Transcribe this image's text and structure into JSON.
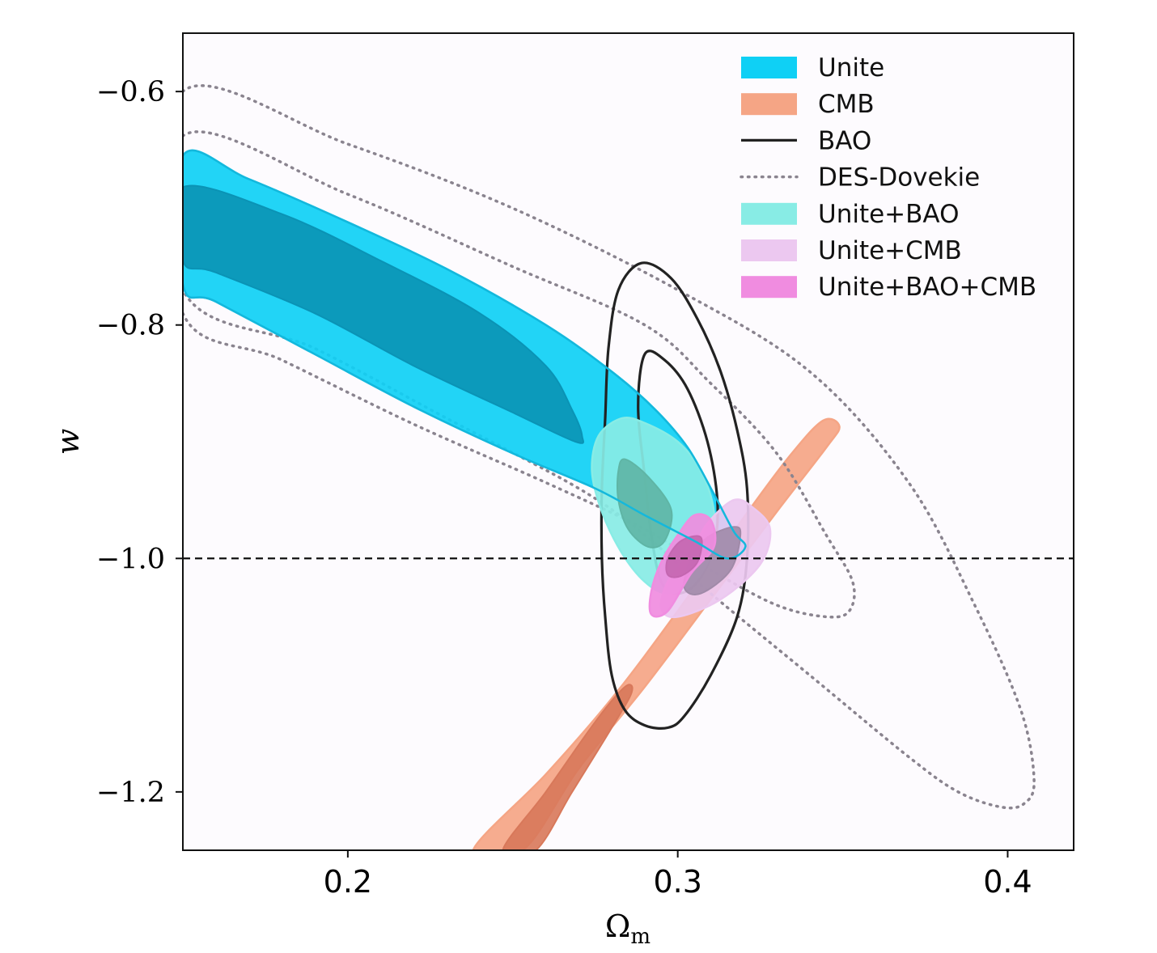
{
  "chart_data": {
    "type": "contour",
    "title": "",
    "xlabel": "Ω",
    "xlabel_sub": "m",
    "ylabel": "w",
    "xlim": [
      0.15,
      0.42
    ],
    "ylim": [
      -1.25,
      -0.55
    ],
    "x_ticks": [
      {
        "value": 0.2,
        "label": "0.2"
      },
      {
        "value": 0.3,
        "label": "0.3"
      },
      {
        "value": 0.4,
        "label": "0.4"
      }
    ],
    "y_ticks": [
      {
        "value": -0.6,
        "label": "−0.6"
      },
      {
        "value": -0.8,
        "label": "−0.8"
      },
      {
        "value": -1.0,
        "label": "−1.0"
      },
      {
        "value": -1.2,
        "label": "−1.2"
      }
    ],
    "reference_line": {
      "y": -1.0,
      "style": "dashed",
      "color": "#111111"
    },
    "grid": false,
    "legend_position": "top-right",
    "series": [
      {
        "name": "Unite",
        "style": "filled",
        "color": "#0fd0f5",
        "inner_color": "#0a93b5",
        "outer": [
          [
            0.15,
            -0.655
          ],
          [
            0.17,
            -0.675
          ],
          [
            0.2,
            -0.712
          ],
          [
            0.23,
            -0.752
          ],
          [
            0.26,
            -0.8
          ],
          [
            0.28,
            -0.84
          ],
          [
            0.293,
            -0.872
          ],
          [
            0.303,
            -0.905
          ],
          [
            0.311,
            -0.945
          ],
          [
            0.317,
            -0.977
          ],
          [
            0.3205,
            -0.99
          ],
          [
            0.315,
            -1.0
          ],
          [
            0.305,
            -0.985
          ],
          [
            0.29,
            -0.963
          ],
          [
            0.275,
            -0.94
          ],
          [
            0.25,
            -0.91
          ],
          [
            0.22,
            -0.87
          ],
          [
            0.19,
            -0.825
          ],
          [
            0.16,
            -0.78
          ],
          [
            0.15,
            -0.765
          ]
        ],
        "inner": [
          [
            0.15,
            -0.682
          ],
          [
            0.18,
            -0.705
          ],
          [
            0.21,
            -0.745
          ],
          [
            0.24,
            -0.79
          ],
          [
            0.26,
            -0.835
          ],
          [
            0.268,
            -0.873
          ],
          [
            0.271,
            -0.895
          ],
          [
            0.269,
            -0.9
          ],
          [
            0.25,
            -0.875
          ],
          [
            0.22,
            -0.835
          ],
          [
            0.19,
            -0.79
          ],
          [
            0.16,
            -0.755
          ],
          [
            0.15,
            -0.745
          ]
        ]
      },
      {
        "name": "CMB",
        "style": "filled",
        "color": "#f5a585",
        "inner_color": "#d8785a",
        "outer": [
          [
            0.238,
            -1.25
          ],
          [
            0.26,
            -1.185
          ],
          [
            0.28,
            -1.12
          ],
          [
            0.3,
            -1.045
          ],
          [
            0.32,
            -0.965
          ],
          [
            0.334,
            -0.912
          ],
          [
            0.344,
            -0.882
          ],
          [
            0.349,
            -0.887
          ],
          [
            0.345,
            -0.905
          ],
          [
            0.33,
            -0.96
          ],
          [
            0.31,
            -1.035
          ],
          [
            0.29,
            -1.11
          ],
          [
            0.27,
            -1.18
          ],
          [
            0.253,
            -1.25
          ]
        ],
        "inner": [
          [
            0.247,
            -1.25
          ],
          [
            0.26,
            -1.2
          ],
          [
            0.275,
            -1.14
          ],
          [
            0.284,
            -1.11
          ],
          [
            0.286,
            -1.115
          ],
          [
            0.28,
            -1.145
          ],
          [
            0.268,
            -1.2
          ],
          [
            0.257,
            -1.25
          ]
        ]
      },
      {
        "name": "BAO",
        "style": "line",
        "color": "#222222",
        "outer": [
          [
            0.289,
            -0.747
          ],
          [
            0.298,
            -0.76
          ],
          [
            0.306,
            -0.795
          ],
          [
            0.313,
            -0.84
          ],
          [
            0.318,
            -0.89
          ],
          [
            0.321,
            -0.94
          ],
          [
            0.321,
            -1.0
          ],
          [
            0.318,
            -1.05
          ],
          [
            0.31,
            -1.1
          ],
          [
            0.302,
            -1.135
          ],
          [
            0.297,
            -1.145
          ],
          [
            0.29,
            -1.143
          ],
          [
            0.284,
            -1.13
          ],
          [
            0.28,
            -1.1
          ],
          [
            0.278,
            -1.05
          ],
          [
            0.277,
            -1.0
          ],
          [
            0.277,
            -0.94
          ],
          [
            0.278,
            -0.88
          ],
          [
            0.279,
            -0.82
          ],
          [
            0.282,
            -0.77
          ]
        ],
        "inner": [
          [
            0.29,
            -0.825
          ],
          [
            0.296,
            -0.83
          ],
          [
            0.303,
            -0.855
          ],
          [
            0.309,
            -0.9
          ],
          [
            0.312,
            -0.95
          ],
          [
            0.311,
            -0.99
          ],
          [
            0.306,
            -1.02
          ],
          [
            0.3,
            -1.03
          ],
          [
            0.295,
            -1.02
          ],
          [
            0.292,
            -0.98
          ],
          [
            0.29,
            -0.93
          ],
          [
            0.288,
            -0.87
          ]
        ]
      },
      {
        "name": "DES-Dovekie",
        "style": "dotted",
        "color": "#8a848f",
        "outer": [
          [
            0.15,
            -0.6
          ],
          [
            0.2,
            -0.645
          ],
          [
            0.25,
            -0.7
          ],
          [
            0.3,
            -0.77
          ],
          [
            0.34,
            -0.84
          ],
          [
            0.37,
            -0.935
          ],
          [
            0.39,
            -1.04
          ],
          [
            0.404,
            -1.13
          ],
          [
            0.408,
            -1.19
          ],
          [
            0.405,
            -1.21
          ],
          [
            0.398,
            -1.213
          ],
          [
            0.385,
            -1.2
          ],
          [
            0.37,
            -1.17
          ],
          [
            0.34,
            -1.1
          ],
          [
            0.31,
            -1.03
          ],
          [
            0.29,
            -0.98
          ],
          [
            0.27,
            -0.94
          ],
          [
            0.23,
            -0.88
          ],
          [
            0.19,
            -0.82
          ],
          [
            0.15,
            -0.77
          ]
        ],
        "inner": [
          [
            0.15,
            -0.638
          ],
          [
            0.2,
            -0.688
          ],
          [
            0.25,
            -0.75
          ],
          [
            0.29,
            -0.8
          ],
          [
            0.31,
            -0.85
          ],
          [
            0.33,
            -0.91
          ],
          [
            0.345,
            -0.98
          ],
          [
            0.353,
            -1.02
          ],
          [
            0.352,
            -1.045
          ],
          [
            0.345,
            -1.05
          ],
          [
            0.33,
            -1.04
          ],
          [
            0.31,
            -1.01
          ],
          [
            0.29,
            -0.975
          ],
          [
            0.26,
            -0.935
          ],
          [
            0.22,
            -0.885
          ],
          [
            0.18,
            -0.83
          ],
          [
            0.15,
            -0.79
          ]
        ]
      },
      {
        "name": "Unite+BAO",
        "style": "filled",
        "color": "#88ece5",
        "inner_color": "#5fb5a5",
        "outer": [
          [
            0.283,
            -0.88
          ],
          [
            0.29,
            -0.884
          ],
          [
            0.3,
            -0.9
          ],
          [
            0.307,
            -0.925
          ],
          [
            0.311,
            -0.96
          ],
          [
            0.31,
            -0.995
          ],
          [
            0.305,
            -1.02
          ],
          [
            0.297,
            -1.03
          ],
          [
            0.29,
            -1.02
          ],
          [
            0.283,
            -0.995
          ],
          [
            0.277,
            -0.96
          ],
          [
            0.274,
            -0.925
          ],
          [
            0.276,
            -0.895
          ]
        ],
        "inner": [
          [
            0.284,
            -0.915
          ],
          [
            0.291,
            -0.93
          ],
          [
            0.298,
            -0.958
          ],
          [
            0.296,
            -0.985
          ],
          [
            0.291,
            -0.99
          ],
          [
            0.285,
            -0.975
          ],
          [
            0.282,
            -0.95
          ],
          [
            0.282,
            -0.925
          ]
        ]
      },
      {
        "name": "Unite+CMB",
        "style": "filled",
        "color": "#ecc8f0",
        "inner_color": "#a08aa8",
        "outer": [
          [
            0.317,
            -0.95
          ],
          [
            0.323,
            -0.957
          ],
          [
            0.328,
            -0.975
          ],
          [
            0.325,
            -1.005
          ],
          [
            0.313,
            -1.035
          ],
          [
            0.3,
            -1.05
          ],
          [
            0.295,
            -1.043
          ],
          [
            0.297,
            -1.02
          ],
          [
            0.304,
            -0.995
          ],
          [
            0.309,
            -0.97
          ]
        ],
        "inner": [
          [
            0.317,
            -0.973
          ],
          [
            0.319,
            -0.98
          ],
          [
            0.316,
            -1.01
          ],
          [
            0.307,
            -1.03
          ],
          [
            0.302,
            -1.025
          ],
          [
            0.304,
            -1.0
          ],
          [
            0.309,
            -0.982
          ]
        ]
      },
      {
        "name": "Unite+BAO+CMB",
        "style": "filled",
        "color": "#f08ce0",
        "inner_color": "#c466b0",
        "outer": [
          [
            0.305,
            -0.963
          ],
          [
            0.31,
            -0.967
          ],
          [
            0.311,
            -0.99
          ],
          [
            0.304,
            -1.013
          ],
          [
            0.297,
            -1.045
          ],
          [
            0.292,
            -1.048
          ],
          [
            0.292,
            -1.028
          ],
          [
            0.295,
            -1.003
          ],
          [
            0.3,
            -0.98
          ]
        ],
        "inner": [
          [
            0.307,
            -0.982
          ],
          [
            0.306,
            -1.003
          ],
          [
            0.301,
            -1.015
          ],
          [
            0.297,
            -1.014
          ],
          [
            0.297,
            -1.0
          ],
          [
            0.301,
            -0.985
          ]
        ]
      }
    ]
  }
}
